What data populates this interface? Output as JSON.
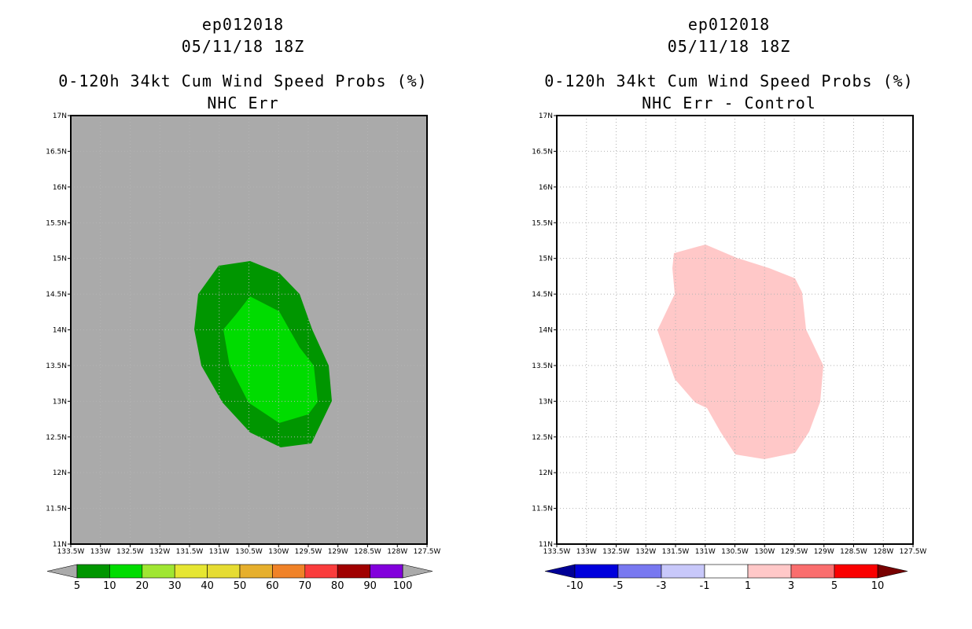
{
  "left_panel": {
    "title_line1": "ep012018",
    "title_line2": "05/11/18 18Z",
    "title_line3": "0-120h 34kt Cum Wind Speed Probs (%)",
    "title_line4": "NHC Err",
    "background_color": "#aaaaaa",
    "contours": [
      {
        "level": "5-10",
        "color": "#009600"
      },
      {
        "level": "10-20",
        "color": "#00dc00"
      }
    ],
    "colorbar": {
      "labels": [
        "5",
        "10",
        "20",
        "30",
        "40",
        "50",
        "60",
        "70",
        "80",
        "90",
        "100"
      ],
      "colors": [
        "#009600",
        "#00dc00",
        "#a0e632",
        "#e6e632",
        "#e6dc32",
        "#e6af2d",
        "#f08228",
        "#fa3c3c",
        "#a00000",
        "#8200dc"
      ],
      "under_color": "#aaaaaa",
      "over_color": "#aaaaaa"
    }
  },
  "right_panel": {
    "title_line1": "ep012018",
    "title_line2": "05/11/18 18Z",
    "title_line3": "0-120h 34kt Cum Wind Speed Probs (%)",
    "title_line4": "NHC Err - Control",
    "background_color": "#ffffff",
    "contours": [
      {
        "level": "1-3",
        "color": "#ffc8c8"
      }
    ],
    "colorbar": {
      "labels": [
        "-10",
        "-5",
        "-3",
        "-1",
        "1",
        "3",
        "5",
        "10"
      ],
      "colors": [
        "#0000dc",
        "#7878f0",
        "#c8c8fa",
        "#ffffff",
        "#ffc8c8",
        "#fa6e6e",
        "#fa0000"
      ],
      "under_color": "#000096",
      "over_color": "#780000"
    }
  },
  "axes": {
    "x_ticks": [
      "133.5W",
      "133W",
      "132.5W",
      "132W",
      "131.5W",
      "131W",
      "130.5W",
      "130W",
      "129.5W",
      "129W",
      "128.5W",
      "128W",
      "127.5W"
    ],
    "y_ticks": [
      "11N",
      "11.5N",
      "12N",
      "12.5N",
      "13N",
      "13.5N",
      "14N",
      "14.5N",
      "15N",
      "15.5N",
      "16N",
      "16.5N",
      "17N"
    ]
  }
}
